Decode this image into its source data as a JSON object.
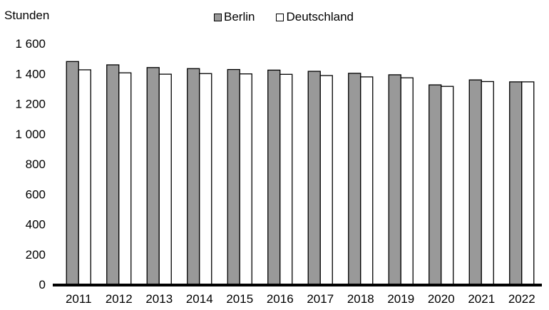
{
  "chart_data": {
    "type": "bar",
    "title": "",
    "ylabel": "Stunden",
    "xlabel": "",
    "categories": [
      "2011",
      "2012",
      "2013",
      "2014",
      "2015",
      "2016",
      "2017",
      "2018",
      "2019",
      "2020",
      "2021",
      "2022"
    ],
    "series": [
      {
        "name": "Berlin",
        "color": "#999999",
        "values": [
          1480,
          1458,
          1440,
          1433,
          1427,
          1423,
          1415,
          1402,
          1392,
          1325,
          1358,
          1345
        ]
      },
      {
        "name": "Deutschland",
        "color": "#ffffff",
        "values": [
          1425,
          1405,
          1396,
          1400,
          1398,
          1395,
          1387,
          1378,
          1372,
          1315,
          1347,
          1345
        ]
      }
    ],
    "ylim": [
      0,
      1600
    ],
    "yticks": [
      0,
      200,
      400,
      600,
      800,
      1000,
      1200,
      1400,
      1600
    ],
    "ytick_labels": [
      "0",
      "200",
      "400",
      "600",
      "800",
      "1 000",
      "1 200",
      "1 400",
      "1 600"
    ],
    "grid": false,
    "legend_position": "top-center"
  }
}
